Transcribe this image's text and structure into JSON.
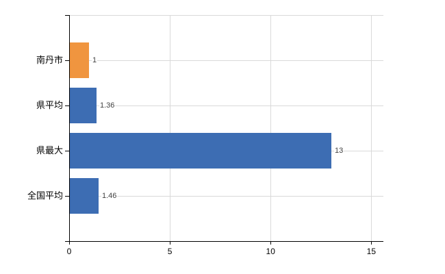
{
  "chart_data": {
    "type": "bar",
    "orientation": "horizontal",
    "title": "",
    "xlabel": "",
    "ylabel": "",
    "categories": [
      "南丹市",
      "県平均",
      "県最大",
      "全国平均"
    ],
    "values": [
      1,
      1.36,
      13,
      1.46
    ],
    "value_labels": [
      "1",
      "1.36",
      "13",
      "1.46"
    ],
    "bar_colors": [
      "#f0953f",
      "#3d6db3",
      "#3d6db3",
      "#3d6db3"
    ],
    "x_ticks": [
      0,
      5,
      10,
      15
    ],
    "x_tick_labels": [
      "0",
      "5",
      "10",
      "15"
    ],
    "xlim": [
      0,
      15.6
    ],
    "grid": "on",
    "legend": "none",
    "colors": {
      "orange_bar": "#f0953f",
      "blue_bar": "#3d6db3",
      "grid": "#d9d9d9",
      "axis": "#000000",
      "text": "#000000",
      "value_text": "#404040",
      "background": "#ffffff"
    }
  }
}
